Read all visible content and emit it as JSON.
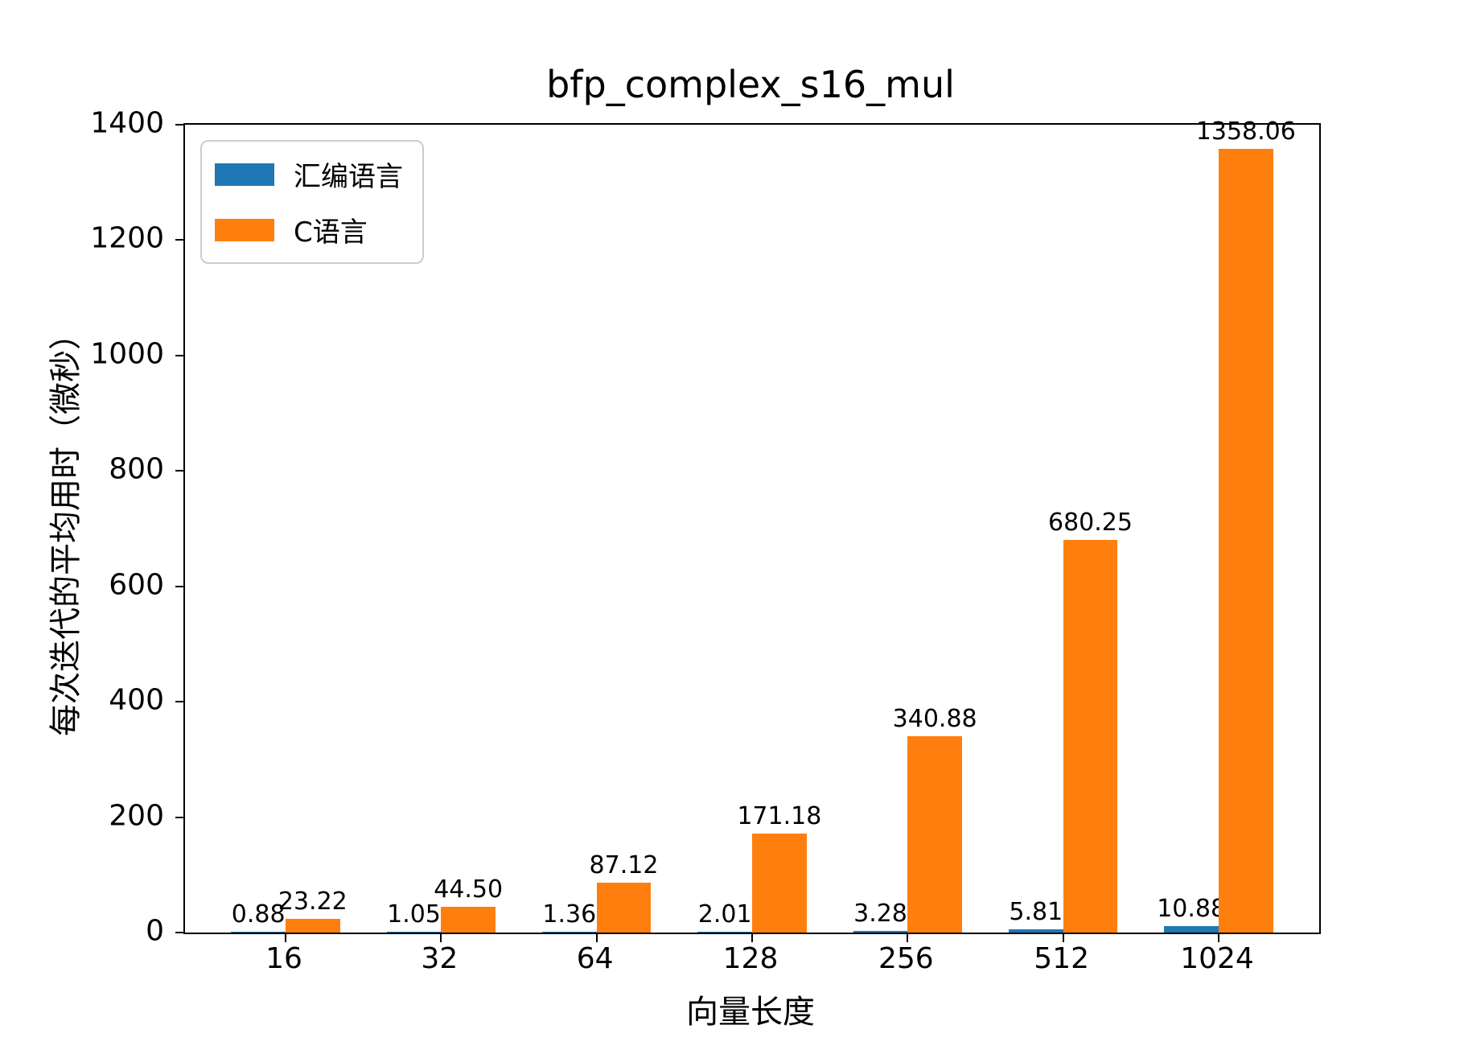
{
  "chart_data": {
    "type": "bar",
    "title": "bfp_complex_s16_mul",
    "xlabel": "向量长度",
    "ylabel": "每次迭代的平均用时（微秒）",
    "categories": [
      "16",
      "32",
      "64",
      "128",
      "256",
      "512",
      "1024"
    ],
    "series": [
      {
        "name": "汇编语言",
        "color": "#1f77b4",
        "values": [
          0.88,
          1.05,
          1.36,
          2.01,
          3.28,
          5.81,
          10.88
        ],
        "labels": [
          "0.88",
          "1.05",
          "1.36",
          "2.01",
          "3.28",
          "5.81",
          "10.88"
        ]
      },
      {
        "name": "C语言",
        "color": "#ff7f0e",
        "values": [
          23.22,
          44.5,
          87.12,
          171.18,
          340.88,
          680.25,
          1358.06
        ],
        "labels": [
          "23.22",
          "44.50",
          "87.12",
          "171.18",
          "340.88",
          "680.25",
          "1358.06"
        ]
      }
    ],
    "ylim": [
      0,
      1400
    ],
    "yticks": [
      "0",
      "200",
      "400",
      "600",
      "800",
      "1000",
      "1200",
      "1400"
    ],
    "legend_position": "upper-left",
    "grid": false,
    "bar_width_fraction": 0.35
  }
}
